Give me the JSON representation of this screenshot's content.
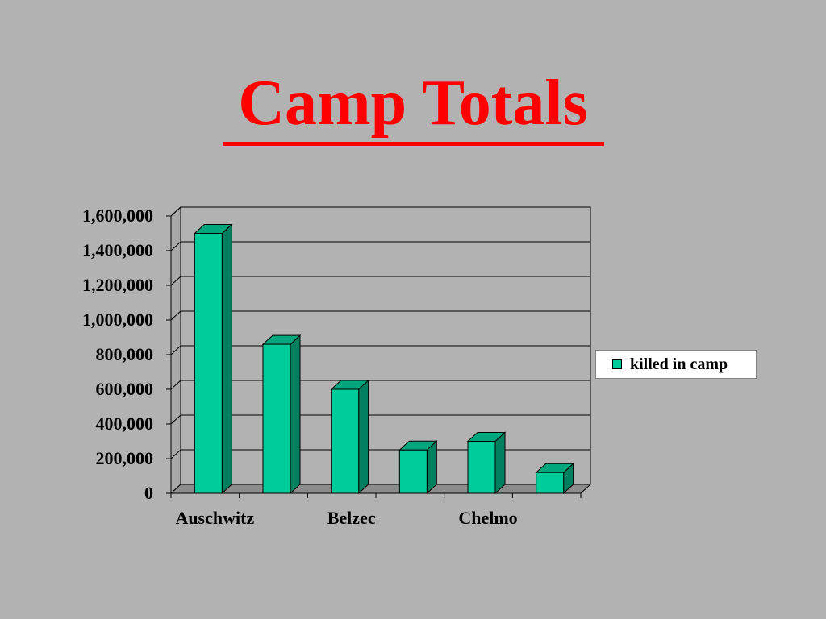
{
  "slide": {
    "title": "Camp Totals",
    "title_color": "#ff0000",
    "background": "#b2b2b2"
  },
  "chart_data": {
    "type": "bar",
    "style": "3d",
    "title": "",
    "xlabel": "",
    "ylabel": "",
    "categories": [
      "Auschwitz",
      "",
      "Belzec",
      "",
      "Chelmo",
      ""
    ],
    "series": [
      {
        "name": "killed in camp",
        "color": "#00cc99",
        "values": [
          1500000,
          860000,
          600000,
          250000,
          300000,
          120000
        ]
      }
    ],
    "ylim": [
      0,
      1600000
    ],
    "yticks": [
      "0",
      "200,000",
      "400,000",
      "600,000",
      "800,000",
      "1,000,000",
      "1,200,000",
      "1,400,000",
      "1,600,000"
    ],
    "grid": true,
    "legend_position": "right"
  }
}
